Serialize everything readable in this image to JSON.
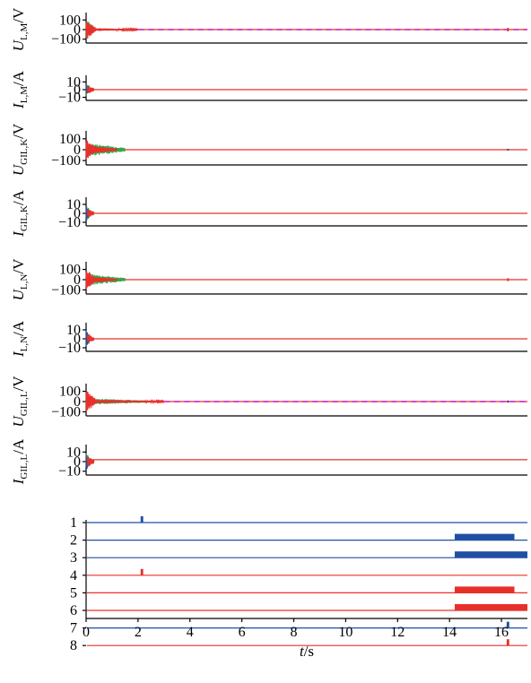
{
  "chart_data": {
    "type": "line",
    "x_ticks": [
      0,
      2,
      4,
      6,
      8,
      10,
      12,
      14,
      16
    ],
    "xlabel_var": "t",
    "xlabel_unit": "/s",
    "xlim": [
      0,
      17
    ],
    "colors": {
      "blue": "#1f4fa3",
      "red": "#e8302a",
      "green": "#3aa64a",
      "magenta": "#d04ad0"
    },
    "panels": [
      {
        "id": "u-lm",
        "sym": "U",
        "sub": "L,M",
        "unit": "/V",
        "ticks": [
          "100",
          "0",
          "−100"
        ],
        "tick_values": [
          100,
          0,
          -100
        ],
        "ylim": [
          -140,
          140
        ],
        "traces": [
          {
            "color": "blue",
            "x0": 0.0,
            "x1": 0.1,
            "amp": 95
          },
          {
            "color": "green",
            "x0": 0.05,
            "x1": 0.25,
            "amp": 110
          },
          {
            "color": "red",
            "x0": 0.0,
            "x1": 0.35,
            "amp": 100
          },
          {
            "color": "red",
            "x0": 0.35,
            "x1": 2.0,
            "amp": 15
          }
        ],
        "flat": [
          {
            "color": "red",
            "value": 0
          }
        ],
        "dashed": {
          "value": 0,
          "from": 0.5,
          "to": 17,
          "amp": 6
        },
        "blips": [
          {
            "x": 16.25,
            "amp": 18,
            "color": "red"
          }
        ]
      },
      {
        "id": "i-lm",
        "sym": "I",
        "sub": "L,M",
        "unit": "/A",
        "ticks": [
          "10",
          "0",
          "−10"
        ],
        "tick_values": [
          10,
          0,
          -10
        ],
        "ylim": [
          -14,
          14
        ],
        "traces": [
          {
            "color": "green",
            "x0": 0.0,
            "x1": 0.2,
            "amp": 9
          },
          {
            "color": "blue",
            "x0": 0.0,
            "x1": 0.15,
            "amp": 8
          },
          {
            "color": "red",
            "x0": 0.05,
            "x1": 0.3,
            "amp": 6
          }
        ],
        "flat": [
          {
            "color": "red",
            "value": 0
          }
        ],
        "dashed": null,
        "blips": []
      },
      {
        "id": "u-gilk",
        "sym": "U",
        "sub": "GIL,K",
        "unit": "/V",
        "ticks": [
          "100",
          "0",
          "−100"
        ],
        "tick_values": [
          100,
          0,
          -100
        ],
        "ylim": [
          -140,
          140
        ],
        "traces": [
          {
            "color": "blue",
            "x0": 0.0,
            "x1": 0.15,
            "amp": 95
          },
          {
            "color": "green",
            "x0": 0.1,
            "x1": 1.5,
            "amp": 60
          },
          {
            "color": "red",
            "x0": 0.0,
            "x1": 0.3,
            "amp": 105
          },
          {
            "color": "red",
            "x0": 0.3,
            "x1": 1.2,
            "amp": 35
          }
        ],
        "flat": [
          {
            "color": "red",
            "value": 0
          }
        ],
        "dashed": null,
        "blips": [
          {
            "x": 16.25,
            "amp": 8,
            "color": "blue"
          }
        ]
      },
      {
        "id": "i-gilk",
        "sym": "I",
        "sub": "GIL,K",
        "unit": "/A",
        "ticks": [
          "10",
          "0",
          "−10"
        ],
        "tick_values": [
          10,
          0,
          -10
        ],
        "ylim": [
          -14,
          14
        ],
        "traces": [
          {
            "color": "green",
            "x0": 0.0,
            "x1": 0.2,
            "amp": 9
          },
          {
            "color": "blue",
            "x0": 0.0,
            "x1": 0.15,
            "amp": 8
          },
          {
            "color": "red",
            "x0": 0.05,
            "x1": 0.3,
            "amp": 6
          }
        ],
        "flat": [
          {
            "color": "red",
            "value": 0
          }
        ],
        "dashed": null,
        "blips": []
      },
      {
        "id": "u-ln",
        "sym": "U",
        "sub": "L,N",
        "unit": "/V",
        "ticks": [
          "100",
          "0",
          "−100"
        ],
        "tick_values": [
          100,
          0,
          -100
        ],
        "ylim": [
          -140,
          140
        ],
        "traces": [
          {
            "color": "blue",
            "x0": 0.0,
            "x1": 0.15,
            "amp": 95
          },
          {
            "color": "green",
            "x0": 0.1,
            "x1": 1.5,
            "amp": 55
          },
          {
            "color": "red",
            "x0": 0.0,
            "x1": 0.3,
            "amp": 105
          },
          {
            "color": "red",
            "x0": 0.3,
            "x1": 1.2,
            "amp": 30
          }
        ],
        "flat": [
          {
            "color": "red",
            "value": 0
          }
        ],
        "dashed": null,
        "blips": [
          {
            "x": 16.25,
            "amp": 14,
            "color": "red"
          }
        ]
      },
      {
        "id": "i-ln",
        "sym": "I",
        "sub": "L,N",
        "unit": "/A",
        "ticks": [
          "10",
          "0",
          "−10"
        ],
        "tick_values": [
          10,
          0,
          -10
        ],
        "ylim": [
          -14,
          14
        ],
        "traces": [
          {
            "color": "green",
            "x0": 0.0,
            "x1": 0.2,
            "amp": 9
          },
          {
            "color": "blue",
            "x0": 0.0,
            "x1": 0.15,
            "amp": 9
          },
          {
            "color": "red",
            "x0": 0.05,
            "x1": 0.3,
            "amp": 6
          }
        ],
        "flat": [
          {
            "color": "red",
            "value": 0
          }
        ],
        "dashed": null,
        "blips": []
      },
      {
        "id": "u-gill",
        "sym": "U",
        "sub": "GIL,L",
        "unit": "/V",
        "ticks": [
          "100",
          "0",
          "−100"
        ],
        "tick_values": [
          100,
          0,
          -100
        ],
        "ylim": [
          -140,
          140
        ],
        "traces": [
          {
            "color": "blue",
            "x0": 0.0,
            "x1": 0.1,
            "amp": 95
          },
          {
            "color": "green",
            "x0": 0.1,
            "x1": 2.5,
            "amp": 30
          },
          {
            "color": "red",
            "x0": 0.0,
            "x1": 0.35,
            "amp": 110
          },
          {
            "color": "red",
            "x0": 0.35,
            "x1": 3.0,
            "amp": 18
          }
        ],
        "flat": [
          {
            "color": "red",
            "value": 0
          }
        ],
        "dashed": {
          "value": 0,
          "from": 1.5,
          "to": 17,
          "amp": 5
        },
        "blips": [
          {
            "x": 16.25,
            "amp": 10,
            "color": "blue"
          }
        ]
      },
      {
        "id": "i-gill",
        "sym": "I",
        "sub": "GIL,L",
        "unit": "/A",
        "ticks": [
          "10",
          "0",
          "−10"
        ],
        "tick_values": [
          10,
          0,
          -10
        ],
        "ylim": [
          -14,
          14
        ],
        "traces": [
          {
            "color": "green",
            "x0": 0.0,
            "x1": 0.2,
            "amp": 9
          },
          {
            "color": "blue",
            "x0": 0.0,
            "x1": 0.15,
            "amp": 9
          },
          {
            "color": "red",
            "x0": 0.05,
            "x1": 0.3,
            "amp": 6
          }
        ],
        "flat": [
          {
            "color": "red",
            "value": 2
          }
        ],
        "dashed": null,
        "blips": []
      }
    ],
    "status_panel": {
      "rows": [
        {
          "label": "1",
          "color": "blue",
          "on": [
            [
              2.1,
              2.2
            ]
          ]
        },
        {
          "label": "2",
          "color": "blue",
          "on": [
            [
              14.2,
              16.5
            ]
          ]
        },
        {
          "label": "3",
          "color": "blue",
          "on": [
            [
              14.2,
              17.0
            ]
          ]
        },
        {
          "label": "4",
          "color": "red",
          "on": [
            [
              2.1,
              2.2
            ]
          ]
        },
        {
          "label": "5",
          "color": "red",
          "on": [
            [
              14.2,
              16.5
            ]
          ]
        },
        {
          "label": "6",
          "color": "red",
          "on": [
            [
              14.2,
              17.0
            ]
          ]
        },
        {
          "label": "7",
          "color": "blue",
          "on": [
            [
              16.2,
              16.3
            ]
          ]
        },
        {
          "label": "8",
          "color": "red",
          "on": [
            [
              16.2,
              16.3
            ]
          ]
        }
      ]
    }
  }
}
